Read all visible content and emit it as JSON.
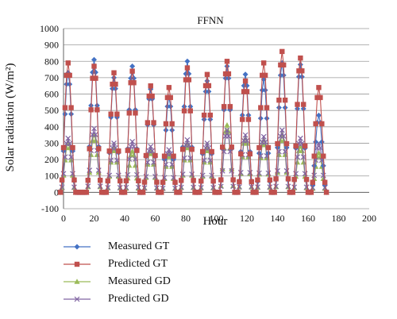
{
  "chart_data": {
    "type": "line",
    "title": "FFNN",
    "xlabel": "Hour",
    "ylabel": "Solar radiation (W/m²)",
    "xlim": [
      0,
      200
    ],
    "ylim": [
      -100,
      1000
    ],
    "x_ticks": [
      0,
      20,
      40,
      60,
      80,
      100,
      120,
      140,
      160,
      180,
      200
    ],
    "y_ticks": [
      -100,
      0,
      100,
      200,
      300,
      400,
      500,
      600,
      700,
      800,
      900,
      1000
    ],
    "grid": "horizontal",
    "legend_position": "bottom-left",
    "series": [
      {
        "name": "Measured GT",
        "color": "#4472C4",
        "marker": "diamond",
        "peaks": [
          {
            "x": 3,
            "y": 730
          },
          {
            "x": 20,
            "y": 810
          },
          {
            "x": 33,
            "y": 700
          },
          {
            "x": 45,
            "y": 770
          },
          {
            "x": 57,
            "y": 630
          },
          {
            "x": 69,
            "y": 580
          },
          {
            "x": 81,
            "y": 800
          },
          {
            "x": 94,
            "y": 680
          },
          {
            "x": 107,
            "y": 770
          },
          {
            "x": 119,
            "y": 720
          },
          {
            "x": 131,
            "y": 690
          },
          {
            "x": 143,
            "y": 790
          },
          {
            "x": 155,
            "y": 780
          },
          {
            "x": 167,
            "y": 470
          }
        ]
      },
      {
        "name": "Predicted GT",
        "color": "#C0504D",
        "marker": "square",
        "peaks": [
          {
            "x": 3,
            "y": 790
          },
          {
            "x": 20,
            "y": 770
          },
          {
            "x": 33,
            "y": 730
          },
          {
            "x": 45,
            "y": 740
          },
          {
            "x": 57,
            "y": 650
          },
          {
            "x": 69,
            "y": 640
          },
          {
            "x": 81,
            "y": 760
          },
          {
            "x": 94,
            "y": 720
          },
          {
            "x": 107,
            "y": 800
          },
          {
            "x": 119,
            "y": 680
          },
          {
            "x": 131,
            "y": 790
          },
          {
            "x": 143,
            "y": 860
          },
          {
            "x": 155,
            "y": 820
          },
          {
            "x": 167,
            "y": 640
          }
        ]
      },
      {
        "name": "Measured GD",
        "color": "#9BBB59",
        "marker": "triangle",
        "peaks": [
          {
            "x": 3,
            "y": 300
          },
          {
            "x": 20,
            "y": 350
          },
          {
            "x": 33,
            "y": 280
          },
          {
            "x": 45,
            "y": 250
          },
          {
            "x": 57,
            "y": 260
          },
          {
            "x": 69,
            "y": 240
          },
          {
            "x": 81,
            "y": 300
          },
          {
            "x": 94,
            "y": 280
          },
          {
            "x": 107,
            "y": 410
          },
          {
            "x": 119,
            "y": 330
          },
          {
            "x": 131,
            "y": 320
          },
          {
            "x": 143,
            "y": 350
          },
          {
            "x": 155,
            "y": 280
          },
          {
            "x": 167,
            "y": 240
          }
        ]
      },
      {
        "name": "Predicted GD",
        "color": "#8064A2",
        "marker": "x",
        "peaks": [
          {
            "x": 3,
            "y": 330
          },
          {
            "x": 20,
            "y": 390
          },
          {
            "x": 33,
            "y": 300
          },
          {
            "x": 45,
            "y": 310
          },
          {
            "x": 57,
            "y": 280
          },
          {
            "x": 69,
            "y": 260
          },
          {
            "x": 81,
            "y": 320
          },
          {
            "x": 94,
            "y": 300
          },
          {
            "x": 107,
            "y": 380
          },
          {
            "x": 119,
            "y": 350
          },
          {
            "x": 131,
            "y": 340
          },
          {
            "x": 143,
            "y": 380
          },
          {
            "x": 155,
            "y": 330
          },
          {
            "x": 167,
            "y": 300
          }
        ]
      }
    ]
  }
}
